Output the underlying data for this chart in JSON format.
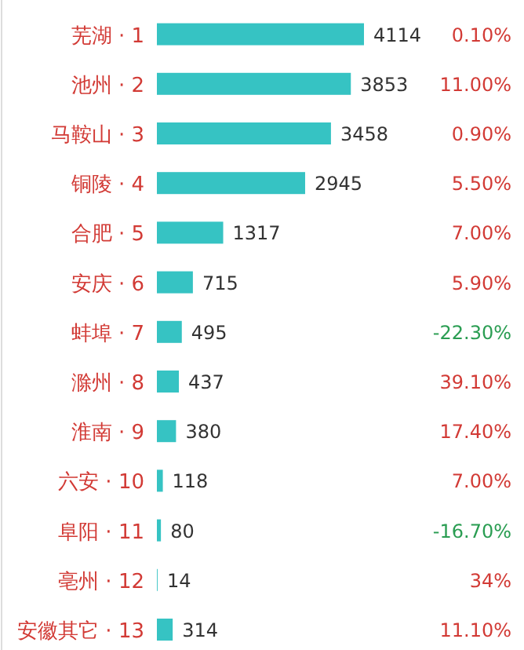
{
  "chart_data": {
    "type": "bar",
    "orientation": "horizontal",
    "categories": [
      "芜湖 · 1",
      "池州 · 2",
      "马鞍山 · 3",
      "铜陵 · 4",
      "合肥 · 5",
      "安庆 · 6",
      "蚌埠 · 7",
      "滁州 · 8",
      "淮南 · 9",
      "六安 · 10",
      "阜阳 · 11",
      "亳州 · 12",
      "安徽其它 · 13"
    ],
    "values": [
      4114,
      3853,
      3458,
      2945,
      1317,
      715,
      495,
      437,
      380,
      118,
      80,
      14,
      314
    ],
    "color": "#36c3c3",
    "data_labels": true,
    "annotations": [
      "0.10%",
      "11.00%",
      "0.90%",
      "5.50%",
      "7.00%",
      "5.90%",
      "-22.30%",
      "39.10%",
      "17.40%",
      "7.00%",
      "-16.70%",
      "34%",
      "11.10%"
    ]
  }
}
